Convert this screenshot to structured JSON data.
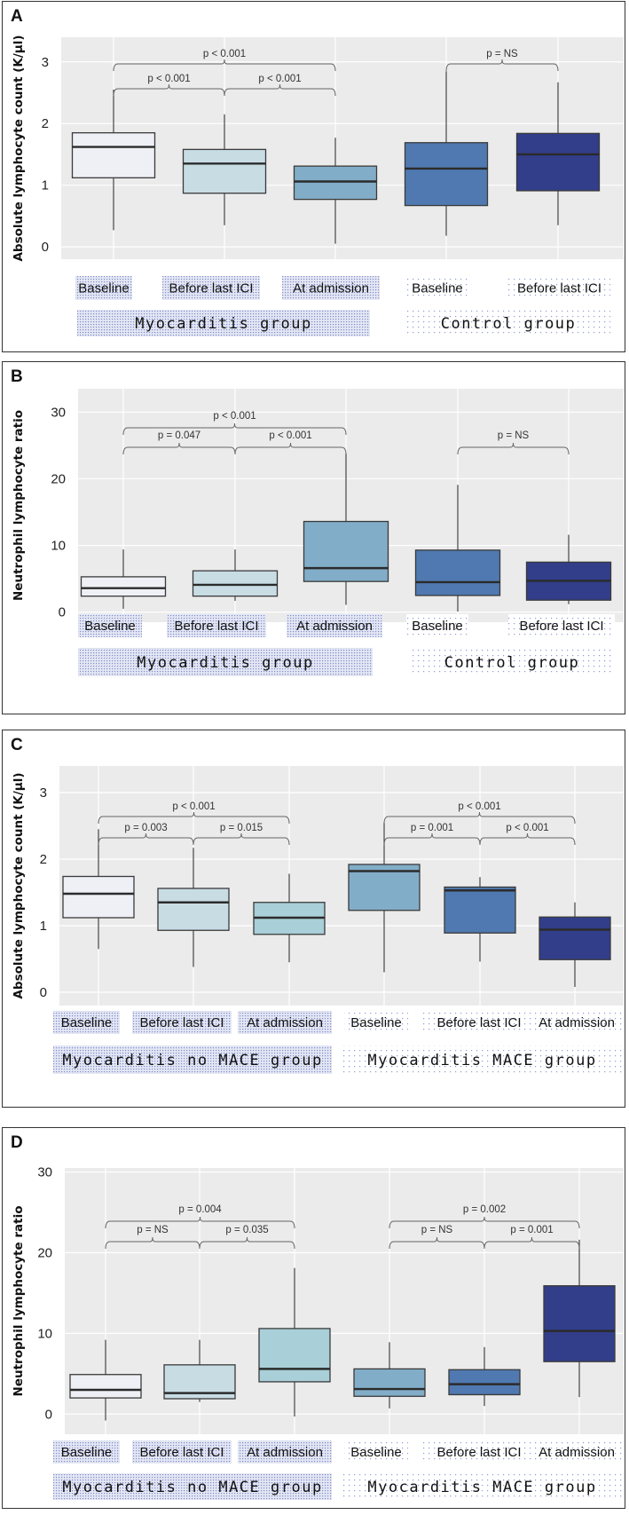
{
  "figure": {
    "panels": [
      {
        "letter": "A"
      },
      {
        "letter": "B"
      },
      {
        "letter": "C"
      },
      {
        "letter": "D"
      }
    ]
  },
  "colors": {
    "plot_bg": "#ebebeb",
    "grid": "#ffffff",
    "box_edge": "#3a3a3a",
    "median": "#2b2b2b",
    "whisker": "#444444",
    "label_fill_dense": "#c9cfe8",
    "label_fill_light": "#eef0f8",
    "box_fills": {
      "very_light": "#eef0f5",
      "light": "#c8dce4",
      "light_teal": "#a9cfd8",
      "mid": "#82adc8",
      "steel": "#4f79b0",
      "navy": "#323e8a"
    }
  },
  "chart_data": [
    {
      "type": "box",
      "panel": "A",
      "title": "",
      "ylabel": "Absolute lymphocyte count (K/µl)",
      "xlabel": "",
      "ylim": [
        -0.2,
        3.4
      ],
      "yticks": [
        0,
        1,
        2,
        3
      ],
      "grid": true,
      "categories": [
        "Baseline",
        "Before last ICI",
        "At admission",
        "Baseline",
        "Before last ICI"
      ],
      "groups": [
        {
          "name": "Myocarditis group",
          "members": [
            0,
            1,
            2
          ],
          "style": "dense"
        },
        {
          "name": "Control group",
          "members": [
            3,
            4
          ],
          "style": "light"
        }
      ],
      "boxes": [
        {
          "category": "Baseline",
          "group": "Myocarditis group",
          "whisker_low": 0.27,
          "q1": 1.12,
          "median": 1.62,
          "q3": 1.85,
          "whisker_high": 2.55,
          "fill": "very_light"
        },
        {
          "category": "Before last ICI",
          "group": "Myocarditis group",
          "whisker_low": 0.35,
          "q1": 0.87,
          "median": 1.35,
          "q3": 1.58,
          "whisker_high": 2.15,
          "fill": "light"
        },
        {
          "category": "At admission",
          "group": "Myocarditis group",
          "whisker_low": 0.05,
          "q1": 0.77,
          "median": 1.06,
          "q3": 1.31,
          "whisker_high": 1.77,
          "fill": "mid"
        },
        {
          "category": "Baseline",
          "group": "Control group",
          "whisker_low": 0.18,
          "q1": 0.67,
          "median": 1.27,
          "q3": 1.69,
          "whisker_high": 2.85,
          "fill": "steel"
        },
        {
          "category": "Before last ICI",
          "group": "Control group",
          "whisker_low": 0.35,
          "q1": 0.91,
          "median": 1.5,
          "q3": 1.84,
          "whisker_high": 2.67,
          "fill": "navy"
        }
      ],
      "comparisons": [
        {
          "from": 0,
          "to": 2,
          "label": "p < 0.001",
          "level": 2
        },
        {
          "from": 0,
          "to": 1,
          "label": "p < 0.001",
          "level": 1
        },
        {
          "from": 1,
          "to": 2,
          "label": "p < 0.001",
          "level": 1
        },
        {
          "from": 3,
          "to": 4,
          "label": "p = NS",
          "level": 2
        }
      ]
    },
    {
      "type": "box",
      "panel": "B",
      "title": "",
      "ylabel": "Neutrophil lymphocyte ratio",
      "xlabel": "",
      "ylim": [
        -1.5,
        33.5
      ],
      "yticks": [
        0,
        10,
        20,
        30
      ],
      "grid": true,
      "categories": [
        "Baseline",
        "Before last ICI",
        "At admission",
        "Baseline",
        "Before last ICI"
      ],
      "groups": [
        {
          "name": "Myocarditis group",
          "members": [
            0,
            1,
            2
          ],
          "style": "dense"
        },
        {
          "name": "Control group",
          "members": [
            3,
            4
          ],
          "style": "light"
        }
      ],
      "boxes": [
        {
          "category": "Baseline",
          "group": "Myocarditis group",
          "whisker_low": 0.5,
          "q1": 2.4,
          "median": 3.6,
          "q3": 5.3,
          "whisker_high": 9.4,
          "fill": "very_light"
        },
        {
          "category": "Before last ICI",
          "group": "Myocarditis group",
          "whisker_low": 1.7,
          "q1": 2.4,
          "median": 4.1,
          "q3": 6.2,
          "whisker_high": 9.4,
          "fill": "light"
        },
        {
          "category": "At admission",
          "group": "Myocarditis group",
          "whisker_low": 1.1,
          "q1": 4.6,
          "median": 6.6,
          "q3": 13.6,
          "whisker_high": 23.8,
          "fill": "mid"
        },
        {
          "category": "Baseline",
          "group": "Control group",
          "whisker_low": 0.1,
          "q1": 2.5,
          "median": 4.5,
          "q3": 9.3,
          "whisker_high": 19.1,
          "fill": "steel"
        },
        {
          "category": "Before last ICI",
          "group": "Control group",
          "whisker_low": 1.2,
          "q1": 1.8,
          "median": 4.7,
          "q3": 7.5,
          "whisker_high": 11.6,
          "fill": "navy"
        }
      ],
      "comparisons": [
        {
          "from": 0,
          "to": 2,
          "label": "p < 0.001",
          "level": 2
        },
        {
          "from": 0,
          "to": 1,
          "label": "p = 0.047",
          "level": 1
        },
        {
          "from": 1,
          "to": 2,
          "label": "p < 0.001",
          "level": 1
        },
        {
          "from": 3,
          "to": 4,
          "label": "p = NS",
          "level": 1
        }
      ]
    },
    {
      "type": "box",
      "panel": "C",
      "title": "",
      "ylabel": "Absolute lymphocyte count (K/µl)",
      "xlabel": "",
      "ylim": [
        -0.2,
        3.4
      ],
      "yticks": [
        0,
        1,
        2,
        3
      ],
      "grid": true,
      "categories": [
        "Baseline",
        "Before last ICI",
        "At admission",
        "Baseline",
        "Before last ICI",
        "At admission"
      ],
      "groups": [
        {
          "name": "Myocarditis no MACE group",
          "members": [
            0,
            1,
            2
          ],
          "style": "dense"
        },
        {
          "name": "Myocarditis MACE group",
          "members": [
            3,
            4,
            5
          ],
          "style": "light"
        }
      ],
      "boxes": [
        {
          "category": "Baseline",
          "group": "Myocarditis no MACE group",
          "whisker_low": 0.65,
          "q1": 1.12,
          "median": 1.48,
          "q3": 1.74,
          "whisker_high": 2.45,
          "fill": "very_light"
        },
        {
          "category": "Before last ICI",
          "group": "Myocarditis no MACE group",
          "whisker_low": 0.38,
          "q1": 0.93,
          "median": 1.35,
          "q3": 1.56,
          "whisker_high": 2.17,
          "fill": "light"
        },
        {
          "category": "At admission",
          "group": "Myocarditis no MACE group",
          "whisker_low": 0.45,
          "q1": 0.87,
          "median": 1.12,
          "q3": 1.35,
          "whisker_high": 1.78,
          "fill": "light_teal"
        },
        {
          "category": "Baseline",
          "group": "Myocarditis MACE group",
          "whisker_low": 0.3,
          "q1": 1.23,
          "median": 1.82,
          "q3": 1.92,
          "whisker_high": 2.55,
          "fill": "mid"
        },
        {
          "category": "Before last ICI",
          "group": "Myocarditis MACE group",
          "whisker_low": 0.46,
          "q1": 0.89,
          "median": 1.53,
          "q3": 1.58,
          "whisker_high": 1.73,
          "fill": "steel"
        },
        {
          "category": "At admission",
          "group": "Myocarditis MACE group",
          "whisker_low": 0.08,
          "q1": 0.49,
          "median": 0.94,
          "q3": 1.13,
          "whisker_high": 1.35,
          "fill": "navy"
        }
      ],
      "comparisons": [
        {
          "from": 0,
          "to": 2,
          "label": "p < 0.001",
          "level": 2
        },
        {
          "from": 0,
          "to": 1,
          "label": "p = 0.003",
          "level": 1
        },
        {
          "from": 1,
          "to": 2,
          "label": "p = 0.015",
          "level": 1
        },
        {
          "from": 3,
          "to": 5,
          "label": "p < 0.001",
          "level": 2
        },
        {
          "from": 3,
          "to": 4,
          "label": "p = 0.001",
          "level": 1
        },
        {
          "from": 4,
          "to": 5,
          "label": "p < 0.001",
          "level": 1
        }
      ]
    },
    {
      "type": "box",
      "panel": "D",
      "title": "",
      "ylabel": "Neutrophil lymphocyte ratio",
      "xlabel": "",
      "ylim": [
        -2.5,
        30.5
      ],
      "yticks": [
        0,
        10,
        20,
        30
      ],
      "grid": true,
      "categories": [
        "Baseline",
        "Before last ICI",
        "At admission",
        "Baseline",
        "Before last ICI",
        "At admission"
      ],
      "groups": [
        {
          "name": "Myocarditis no MACE group",
          "members": [
            0,
            1,
            2
          ],
          "style": "dense"
        },
        {
          "name": "Myocarditis MACE group",
          "members": [
            3,
            4,
            5
          ],
          "style": "light"
        }
      ],
      "boxes": [
        {
          "category": "Baseline",
          "group": "Myocarditis no MACE group",
          "whisker_low": -0.8,
          "q1": 2.0,
          "median": 3.0,
          "q3": 4.9,
          "whisker_high": 9.2,
          "fill": "very_light"
        },
        {
          "category": "Before last ICI",
          "group": "Myocarditis no MACE group",
          "whisker_low": 1.5,
          "q1": 1.9,
          "median": 2.6,
          "q3": 6.1,
          "whisker_high": 9.2,
          "fill": "light"
        },
        {
          "category": "At admission",
          "group": "Myocarditis no MACE group",
          "whisker_low": -0.3,
          "q1": 4.0,
          "median": 5.6,
          "q3": 10.6,
          "whisker_high": 18.1,
          "fill": "light_teal"
        },
        {
          "category": "Baseline",
          "group": "Myocarditis MACE group",
          "whisker_low": 0.7,
          "q1": 2.2,
          "median": 3.1,
          "q3": 5.6,
          "whisker_high": 8.9,
          "fill": "mid"
        },
        {
          "category": "Before last ICI",
          "group": "Myocarditis MACE group",
          "whisker_low": 1.0,
          "q1": 2.4,
          "median": 3.7,
          "q3": 5.5,
          "whisker_high": 8.3,
          "fill": "steel"
        },
        {
          "category": "At admission",
          "group": "Myocarditis MACE group",
          "whisker_low": 2.1,
          "q1": 6.5,
          "median": 10.3,
          "q3": 15.9,
          "whisker_high": 21.6,
          "fill": "navy"
        }
      ],
      "comparisons": [
        {
          "from": 0,
          "to": 2,
          "label": "p = 0.004",
          "level": 2
        },
        {
          "from": 0,
          "to": 1,
          "label": "p = NS",
          "level": 1
        },
        {
          "from": 1,
          "to": 2,
          "label": "p = 0.035",
          "level": 1
        },
        {
          "from": 3,
          "to": 5,
          "label": "p = 0.002",
          "level": 2
        },
        {
          "from": 3,
          "to": 4,
          "label": "p = NS",
          "level": 1
        },
        {
          "from": 4,
          "to": 5,
          "label": "p = 0.001",
          "level": 1
        }
      ]
    }
  ]
}
